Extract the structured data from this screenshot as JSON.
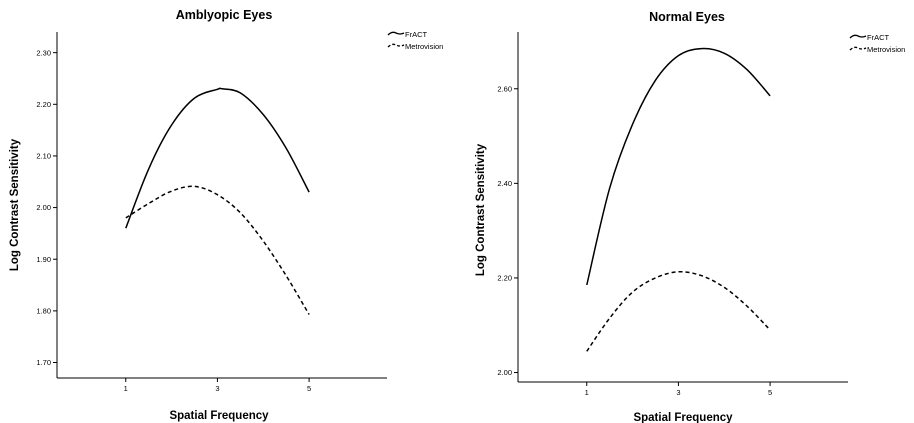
{
  "chart_data": [
    {
      "type": "line",
      "title": "Amblyopic Eyes",
      "xlabel": "Spatial Frequency",
      "ylabel": "Log Contrast Sensitivity",
      "x_ticks": [
        "1",
        "3",
        "5"
      ],
      "y_ticks": [
        "1.70",
        "1.80",
        "1.90",
        "2.00",
        "2.10",
        "2.20",
        "2.30"
      ],
      "xlim": [
        -0.5,
        6.7
      ],
      "ylim": [
        1.67,
        2.34
      ],
      "grid": false,
      "legend_position": "top-right",
      "series": [
        {
          "name": "FrACT",
          "style": "solid",
          "x": [
            1,
            1.5,
            2,
            2.5,
            3,
            3.1,
            3.5,
            4,
            4.5,
            5
          ],
          "y": [
            1.96,
            2.075,
            2.16,
            2.212,
            2.229,
            2.23,
            2.222,
            2.18,
            2.115,
            2.03
          ]
        },
        {
          "name": "Metrovision",
          "style": "dashed",
          "x": [
            1,
            1.5,
            2,
            2.5,
            3,
            3.5,
            4,
            4.5,
            5
          ],
          "y": [
            1.98,
            2.008,
            2.032,
            2.041,
            2.025,
            1.99,
            1.935,
            1.868,
            1.793
          ]
        }
      ]
    },
    {
      "type": "line",
      "title": "Normal Eyes",
      "xlabel": "Spatial Frequency",
      "ylabel": "Log Contrast Sensitivity",
      "x_ticks": [
        "1",
        "3",
        "5"
      ],
      "y_ticks": [
        "2.00",
        "2.20",
        "2.40",
        "2.60"
      ],
      "xlim": [
        -0.5,
        6.7
      ],
      "ylim": [
        1.98,
        2.72
      ],
      "grid": false,
      "legend_position": "top-right",
      "series": [
        {
          "name": "FrACT",
          "style": "solid",
          "x": [
            1,
            1.5,
            2,
            2.5,
            3,
            3.5,
            4,
            4.5,
            5
          ],
          "y": [
            2.185,
            2.39,
            2.525,
            2.618,
            2.67,
            2.685,
            2.675,
            2.64,
            2.585
          ]
        },
        {
          "name": "Metrovision",
          "style": "dashed",
          "x": [
            1,
            1.5,
            2,
            2.5,
            3,
            3.5,
            4,
            4.5,
            5
          ],
          "y": [
            2.045,
            2.115,
            2.17,
            2.2,
            2.213,
            2.205,
            2.18,
            2.14,
            2.09
          ]
        }
      ]
    }
  ]
}
